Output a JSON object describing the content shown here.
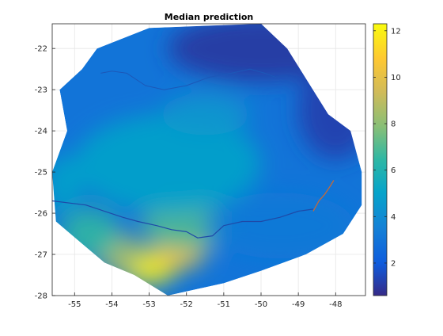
{
  "chart_data": {
    "type": "heatmap",
    "title": "Median prediction",
    "xlabel": "",
    "ylabel": "",
    "xlim": [
      -55.6,
      -47.2
    ],
    "ylim": [
      -28,
      -21.4
    ],
    "xticks": [
      -55,
      -54,
      -53,
      -52,
      -51,
      -50,
      -49,
      -48
    ],
    "yticks": [
      -22,
      -23,
      -24,
      -25,
      -26,
      -27,
      -28
    ],
    "grid": true,
    "colorbar": {
      "colormap": "parula",
      "range": [
        0.6,
        12.3
      ],
      "ticks": [
        2,
        4,
        6,
        8,
        10,
        12
      ]
    },
    "hull": [
      [
        -54.4,
        -22.0
      ],
      [
        -53.0,
        -21.5
      ],
      [
        -50.0,
        -21.4
      ],
      [
        -49.3,
        -22.0
      ],
      [
        -48.2,
        -23.6
      ],
      [
        -47.6,
        -24.0
      ],
      [
        -47.3,
        -25.0
      ],
      [
        -47.3,
        -25.8
      ],
      [
        -47.8,
        -26.5
      ],
      [
        -48.8,
        -27.0
      ],
      [
        -50.0,
        -27.4
      ],
      [
        -51.0,
        -27.7
      ],
      [
        -52.5,
        -28.0
      ],
      [
        -53.4,
        -27.5
      ],
      [
        -54.2,
        -27.2
      ],
      [
        -55.5,
        -26.2
      ],
      [
        -55.6,
        -25.0
      ],
      [
        -55.2,
        -24.0
      ],
      [
        -55.4,
        -23.0
      ],
      [
        -54.8,
        -22.5
      ]
    ],
    "hotspots": [
      {
        "x": -53.0,
        "y": -27.3,
        "value": 12.0,
        "rx": 0.75,
        "ry": 0.45
      },
      {
        "x": -52.2,
        "y": -27.0,
        "value": 10.5,
        "rx": 0.7,
        "ry": 0.35
      },
      {
        "x": -53.8,
        "y": -27.0,
        "value": 8.5,
        "rx": 0.6,
        "ry": 0.5
      },
      {
        "x": -54.6,
        "y": -26.5,
        "value": 6.5,
        "rx": 0.8,
        "ry": 0.6
      },
      {
        "x": -52.0,
        "y": -26.3,
        "value": 7.0,
        "rx": 1.2,
        "ry": 0.6
      },
      {
        "x": -52.5,
        "y": -24.8,
        "value": 5.0,
        "rx": 2.5,
        "ry": 1.2
      },
      {
        "x": -51.5,
        "y": -23.6,
        "value": 4.5,
        "rx": 1.2,
        "ry": 0.5
      },
      {
        "x": -55.3,
        "y": -25.3,
        "value": 5.0,
        "rx": 0.5,
        "ry": 0.7
      },
      {
        "x": -49.5,
        "y": -26.3,
        "value": 3.2,
        "rx": 2.0,
        "ry": 0.8
      },
      {
        "x": -50.0,
        "y": -22.0,
        "value": 1.0,
        "rx": 2.5,
        "ry": 0.8
      },
      {
        "x": -48.0,
        "y": -23.5,
        "value": 1.2,
        "rx": 1.0,
        "ry": 1.2
      }
    ],
    "river_south": [
      [
        -55.6,
        -25.7
      ],
      [
        -54.7,
        -25.8
      ],
      [
        -53.7,
        -26.1
      ],
      [
        -53.3,
        -26.2
      ],
      [
        -52.8,
        -26.3
      ],
      [
        -52.4,
        -26.4
      ],
      [
        -52.0,
        -26.45
      ],
      [
        -51.7,
        -26.6
      ],
      [
        -51.3,
        -26.55
      ],
      [
        -51.0,
        -26.3
      ],
      [
        -50.5,
        -26.2
      ],
      [
        -50.0,
        -26.2
      ],
      [
        -49.5,
        -26.1
      ],
      [
        -49.0,
        -25.95
      ],
      [
        -48.6,
        -25.9
      ]
    ],
    "river_north": [
      [
        -54.3,
        -22.6
      ],
      [
        -54.0,
        -22.55
      ],
      [
        -53.6,
        -22.6
      ],
      [
        -53.1,
        -22.9
      ],
      [
        -52.6,
        -23.0
      ],
      [
        -52.0,
        -22.9
      ],
      [
        -51.4,
        -22.7
      ],
      [
        -50.8,
        -22.6
      ],
      [
        -50.3,
        -22.5
      ],
      [
        -49.9,
        -22.6
      ],
      [
        -49.6,
        -22.7
      ]
    ],
    "river_coast": [
      [
        -48.6,
        -25.95
      ],
      [
        -48.45,
        -25.7
      ],
      [
        -48.3,
        -25.55
      ],
      [
        -48.15,
        -25.35
      ],
      [
        -48.05,
        -25.2
      ]
    ]
  }
}
